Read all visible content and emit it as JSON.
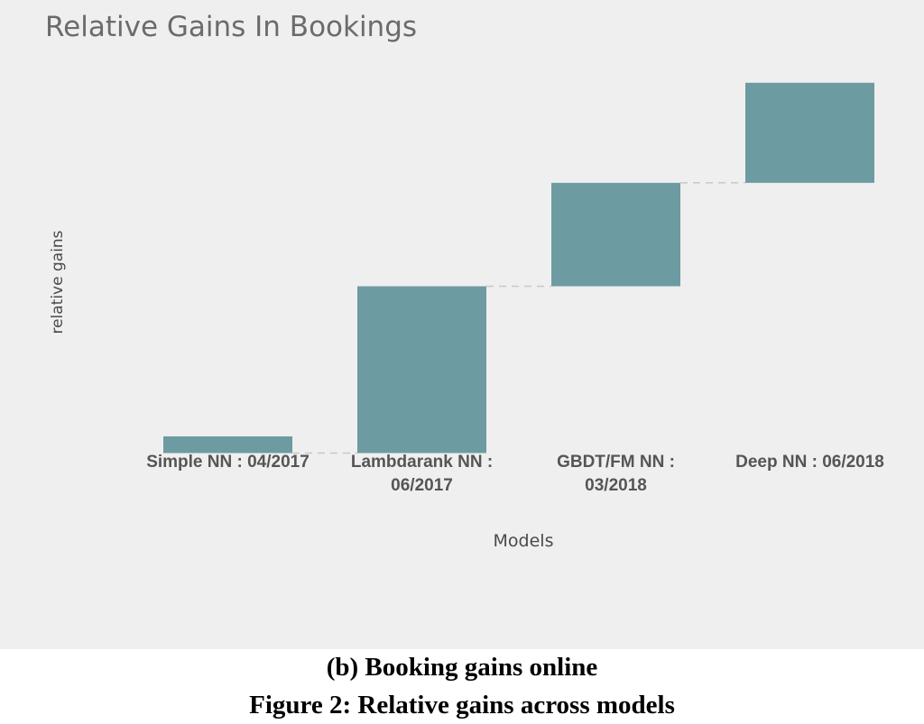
{
  "chart_data": {
    "type": "bar",
    "subtype": "waterfall",
    "title": "Relative Gains In Bookings",
    "xlabel": "Models",
    "ylabel": "relative gains",
    "categories": [
      [
        "Simple NN : 04/2017"
      ],
      [
        "Lambdarank NN :",
        "06/2017"
      ],
      [
        "GBDT/FM NN :",
        "03/2018"
      ],
      [
        "Deep NN : 06/2018"
      ]
    ],
    "series": [
      {
        "values": [
          -0.05,
          0.5,
          0.31,
          0.3
        ]
      }
    ],
    "cumulative": [
      -0.05,
      0.45,
      0.76,
      1.06
    ],
    "ylim": [
      -0.1,
      1.2
    ],
    "grid": false,
    "y_tick_labels_shown": false,
    "colors": {
      "bar": "#6d9ba2",
      "connector": "#c8c8c8"
    }
  },
  "caption": {
    "sub": "(b) Booking gains online",
    "main": "Figure 2: Relative gains across models"
  }
}
